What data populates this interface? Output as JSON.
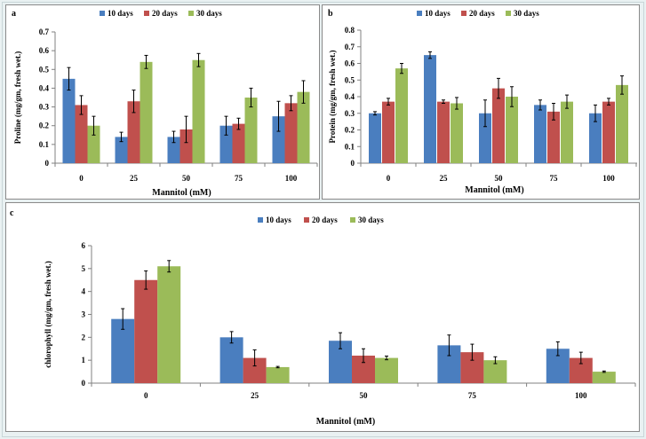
{
  "colors": {
    "series": [
      "#4a7ebf",
      "#c0504d",
      "#9bbb59"
    ],
    "axis": "#808080",
    "error_bar": "#000000",
    "background": "#e9f1f2"
  },
  "chart_data": [
    {
      "panel_label": "a",
      "type": "bar",
      "xlabel": "Mannitol  (mM)",
      "ylabel": "Proline (mg/gm, fresh wet.)",
      "categories": [
        "0",
        "25",
        "50",
        "75",
        "100"
      ],
      "ylim": [
        0,
        0.7
      ],
      "yticks": [
        0,
        0.1,
        0.2,
        0.3,
        0.4,
        0.5,
        0.6,
        0.7
      ],
      "ytick_labels": [
        "0",
        "0.1",
        "0.2",
        "0.3",
        "0.4",
        "0.5",
        "0.6",
        "0.7"
      ],
      "legend_position": "top",
      "grid": false,
      "series": [
        {
          "name": "10 days",
          "values": [
            0.45,
            0.14,
            0.14,
            0.2,
            0.25
          ],
          "errors": [
            0.06,
            0.025,
            0.03,
            0.05,
            0.08
          ]
        },
        {
          "name": "20 days",
          "values": [
            0.31,
            0.33,
            0.18,
            0.21,
            0.32
          ],
          "errors": [
            0.05,
            0.06,
            0.07,
            0.03,
            0.04
          ]
        },
        {
          "name": "30 days",
          "values": [
            0.2,
            0.54,
            0.55,
            0.35,
            0.38
          ],
          "errors": [
            0.05,
            0.035,
            0.035,
            0.05,
            0.06
          ]
        }
      ]
    },
    {
      "panel_label": "b",
      "type": "bar",
      "xlabel": "Mannitol  (mM)",
      "ylabel": "Protein (mg/gm, fresh wet.)",
      "categories": [
        "0",
        "25",
        "50",
        "75",
        "100"
      ],
      "ylim": [
        0,
        0.8
      ],
      "yticks": [
        0,
        0.1,
        0.2,
        0.3,
        0.4,
        0.5,
        0.6,
        0.7,
        0.8
      ],
      "ytick_labels": [
        "0",
        "0.1",
        "0.2",
        "0.3",
        "0.4",
        "0.5",
        "0.6",
        "0.7",
        "0.8"
      ],
      "legend_position": "top",
      "grid": false,
      "series": [
        {
          "name": "10 days",
          "values": [
            0.3,
            0.65,
            0.3,
            0.35,
            0.3
          ],
          "errors": [
            0.01,
            0.02,
            0.08,
            0.03,
            0.05
          ]
        },
        {
          "name": "20 days",
          "values": [
            0.37,
            0.37,
            0.45,
            0.31,
            0.37
          ],
          "errors": [
            0.02,
            0.01,
            0.06,
            0.05,
            0.02
          ]
        },
        {
          "name": "30 days",
          "values": [
            0.57,
            0.36,
            0.4,
            0.37,
            0.47
          ],
          "errors": [
            0.03,
            0.035,
            0.06,
            0.04,
            0.055
          ]
        }
      ]
    },
    {
      "panel_label": "c",
      "type": "bar",
      "xlabel": "Mannitol  (mM)",
      "ylabel": "chlorophyll (mg/gm, fresh wet.)",
      "categories": [
        "0",
        "25",
        "50",
        "75",
        "100"
      ],
      "ylim": [
        0,
        6
      ],
      "yticks": [
        0,
        1,
        2,
        3,
        4,
        5,
        6
      ],
      "ytick_labels": [
        "0",
        "1",
        "2",
        "3",
        "4",
        "5",
        "6"
      ],
      "legend_position": "top",
      "grid": false,
      "series": [
        {
          "name": "10 days",
          "values": [
            2.8,
            2.0,
            1.85,
            1.65,
            1.5
          ],
          "errors": [
            0.45,
            0.25,
            0.35,
            0.45,
            0.3
          ]
        },
        {
          "name": "20 days",
          "values": [
            4.5,
            1.1,
            1.2,
            1.35,
            1.1
          ],
          "errors": [
            0.4,
            0.35,
            0.3,
            0.35,
            0.25
          ]
        },
        {
          "name": "30 days",
          "values": [
            5.1,
            0.7,
            1.1,
            1.0,
            0.5
          ],
          "errors": [
            0.25,
            0.03,
            0.08,
            0.15,
            0.03
          ]
        }
      ]
    }
  ]
}
